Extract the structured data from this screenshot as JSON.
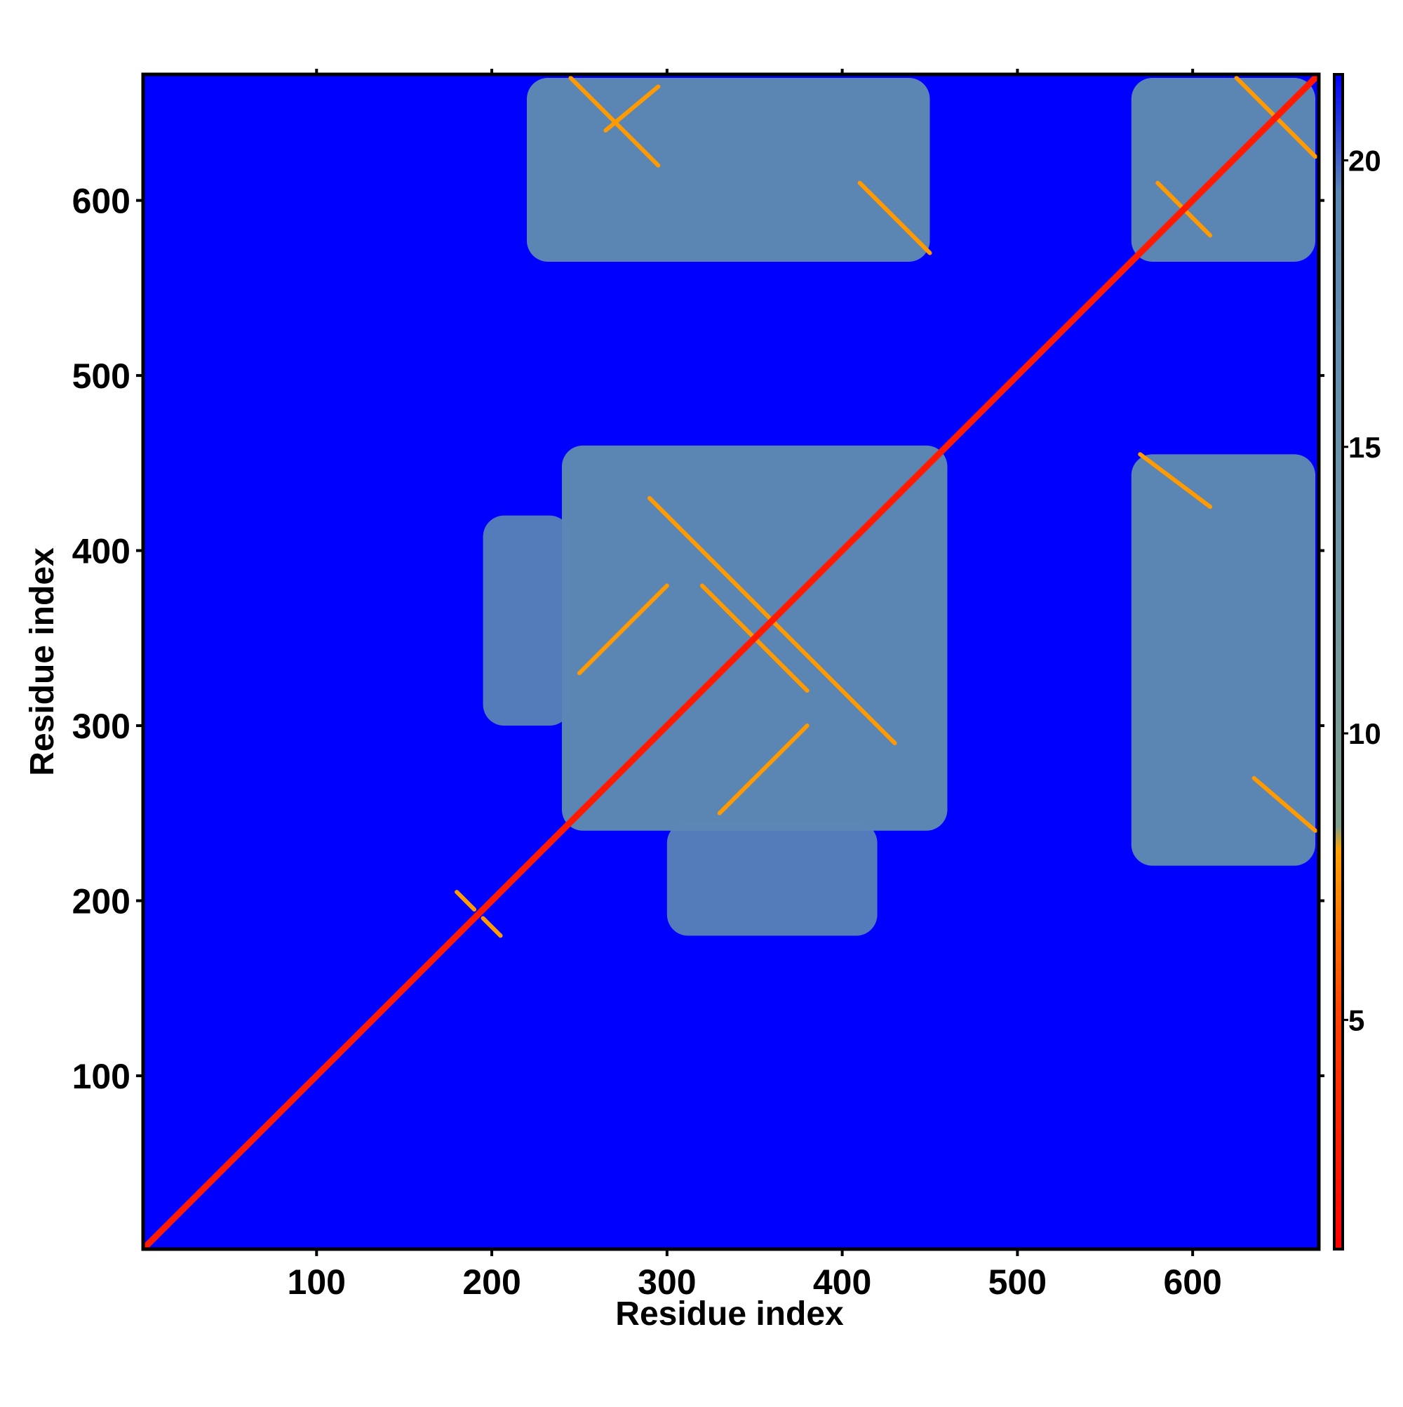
{
  "chart_data": {
    "type": "heatmap",
    "title": "",
    "xlabel": "Residue index",
    "ylabel": "Residue index",
    "xlim": [
      1,
      672
    ],
    "ylim": [
      1,
      672
    ],
    "xticks": [
      100,
      200,
      300,
      400,
      500,
      600
    ],
    "yticks": [
      100,
      200,
      300,
      400,
      500,
      600
    ],
    "xtick_labels": [
      "100",
      "200",
      "300",
      "400",
      "500",
      "600"
    ],
    "ytick_labels": [
      "100",
      "200",
      "300",
      "400",
      "500",
      "600"
    ],
    "grid": false,
    "colorbar": {
      "range": [
        1,
        21.5
      ],
      "ticks": [
        5,
        10,
        15,
        20
      ],
      "tick_labels": [
        "5",
        "10",
        "15",
        "20"
      ],
      "colors": {
        "low": "#ff0000",
        "mid_low": "#ff8c00",
        "mid": "#7f9f9f",
        "high": "#5b87b5",
        "max": "#0000ff"
      }
    },
    "background_value": 21,
    "colors": {
      "diagonal": "#ff1a00",
      "background": "#0000ff"
    },
    "regions": [
      {
        "x": [
          240,
          460
        ],
        "y": [
          240,
          460
        ],
        "value": 14
      },
      {
        "x": [
          195,
          245
        ],
        "y": [
          300,
          420
        ],
        "value": 17
      },
      {
        "x": [
          300,
          420
        ],
        "y": [
          180,
          245
        ],
        "value": 17
      },
      {
        "x": [
          220,
          450
        ],
        "y": [
          565,
          670
        ],
        "value": 14
      },
      {
        "x": [
          565,
          670
        ],
        "y": [
          565,
          670
        ],
        "value": 14
      },
      {
        "x": [
          565,
          670
        ],
        "y": [
          220,
          455
        ],
        "value": 14
      }
    ],
    "contact_lines": [
      {
        "x": [
          245,
          295
        ],
        "y": [
          670,
          620
        ],
        "value": 6
      },
      {
        "x": [
          265,
          295
        ],
        "y": [
          640,
          665
        ],
        "value": 7
      },
      {
        "x": [
          410,
          450
        ],
        "y": [
          610,
          570
        ],
        "value": 6
      },
      {
        "x": [
          580,
          610
        ],
        "y": [
          610,
          580
        ],
        "value": 6
      },
      {
        "x": [
          625,
          670
        ],
        "y": [
          670,
          625
        ],
        "value": 6
      },
      {
        "x": [
          570,
          610
        ],
        "y": [
          455,
          425
        ],
        "value": 6
      },
      {
        "x": [
          635,
          670
        ],
        "y": [
          270,
          240
        ],
        "value": 6
      },
      {
        "x": [
          290,
          430
        ],
        "y": [
          430,
          290
        ],
        "value": 6
      },
      {
        "x": [
          320,
          380
        ],
        "y": [
          380,
          320
        ],
        "value": 6
      },
      {
        "x": [
          250,
          300
        ],
        "y": [
          330,
          380
        ],
        "value": 7
      },
      {
        "x": [
          330,
          380
        ],
        "y": [
          250,
          300
        ],
        "value": 7
      },
      {
        "x": [
          180,
          190
        ],
        "y": [
          205,
          195
        ],
        "value": 6
      },
      {
        "x": [
          195,
          205
        ],
        "y": [
          190,
          180
        ],
        "value": 6
      }
    ]
  }
}
